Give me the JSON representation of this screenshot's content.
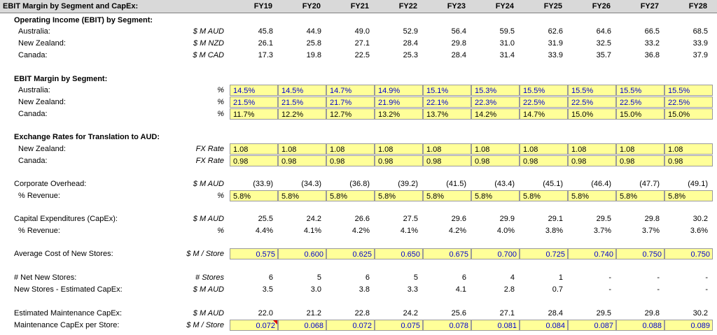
{
  "title": "EBIT Margin by Segment and CapEx:",
  "years": [
    "FY19",
    "FY20",
    "FY21",
    "FY22",
    "FY23",
    "FY24",
    "FY25",
    "FY26",
    "FY27",
    "FY28"
  ],
  "sections": [
    {
      "header": "Operating Income (EBIT) by Segment:",
      "rows": [
        {
          "label": "Australia:",
          "unit": "$ M AUD",
          "style": "plain",
          "values": [
            "45.8",
            "44.9",
            "49.0",
            "52.9",
            "56.4",
            "59.5",
            "62.6",
            "64.6",
            "66.5",
            "68.5"
          ]
        },
        {
          "label": "New Zealand:",
          "unit": "$ M NZD",
          "style": "plain",
          "values": [
            "26.1",
            "25.8",
            "27.1",
            "28.4",
            "29.8",
            "31.0",
            "31.9",
            "32.5",
            "33.2",
            "33.9"
          ]
        },
        {
          "label": "Canada:",
          "unit": "$ M CAD",
          "style": "plain",
          "values": [
            "17.3",
            "19.8",
            "22.5",
            "25.3",
            "28.4",
            "31.4",
            "33.9",
            "35.7",
            "36.8",
            "37.9"
          ]
        }
      ]
    },
    {
      "header": "EBIT Margin by Segment:",
      "rows": [
        {
          "label": "Australia:",
          "unit": "%",
          "style": "input-blue",
          "values": [
            "14.5%",
            "14.5%",
            "14.7%",
            "14.9%",
            "15.1%",
            "15.3%",
            "15.5%",
            "15.5%",
            "15.5%",
            "15.5%"
          ]
        },
        {
          "label": "New Zealand:",
          "unit": "%",
          "style": "input-blue",
          "values": [
            "21.5%",
            "21.5%",
            "21.7%",
            "21.9%",
            "22.1%",
            "22.3%",
            "22.5%",
            "22.5%",
            "22.5%",
            "22.5%"
          ]
        },
        {
          "label": "Canada:",
          "unit": "%",
          "style": "input",
          "values": [
            "11.7%",
            "12.2%",
            "12.7%",
            "13.2%",
            "13.7%",
            "14.2%",
            "14.7%",
            "15.0%",
            "15.0%",
            "15.0%"
          ]
        }
      ]
    },
    {
      "header": "Exchange Rates for Translation to AUD:",
      "rows": [
        {
          "label": "New Zealand:",
          "unit": "FX Rate",
          "style": "input",
          "values": [
            "1.08",
            "1.08",
            "1.08",
            "1.08",
            "1.08",
            "1.08",
            "1.08",
            "1.08",
            "1.08",
            "1.08"
          ]
        },
        {
          "label": "Canada:",
          "unit": "FX Rate",
          "style": "input",
          "values": [
            "0.98",
            "0.98",
            "0.98",
            "0.98",
            "0.98",
            "0.98",
            "0.98",
            "0.98",
            "0.98",
            "0.98"
          ]
        }
      ]
    },
    {
      "header": "",
      "rows": [
        {
          "label": "Corporate Overhead:",
          "unit": "$ M AUD",
          "style": "plain",
          "values": [
            "(33.9)",
            "(34.3)",
            "(36.8)",
            "(39.2)",
            "(41.5)",
            "(43.4)",
            "(45.1)",
            "(46.4)",
            "(47.7)",
            "(49.1)"
          ]
        },
        {
          "label": "% Revenue:",
          "unit": "%",
          "style": "input",
          "values": [
            "5.8%",
            "5.8%",
            "5.8%",
            "5.8%",
            "5.8%",
            "5.8%",
            "5.8%",
            "5.8%",
            "5.8%",
            "5.8%"
          ]
        }
      ]
    },
    {
      "header": "",
      "rows": [
        {
          "label": "Capital Expenditures (CapEx):",
          "unit": "$ M AUD",
          "style": "plain",
          "values": [
            "25.5",
            "24.2",
            "26.6",
            "27.5",
            "29.6",
            "29.9",
            "29.1",
            "29.5",
            "29.8",
            "30.2"
          ]
        },
        {
          "label": "% Revenue:",
          "unit": "%",
          "style": "plain",
          "values": [
            "4.4%",
            "4.1%",
            "4.2%",
            "4.1%",
            "4.2%",
            "4.0%",
            "3.8%",
            "3.7%",
            "3.7%",
            "3.6%"
          ]
        }
      ]
    },
    {
      "header": "",
      "rows": [
        {
          "label": "Average Cost of New Stores:",
          "unit": "$ M / Store",
          "style": "input-blue-right",
          "values": [
            "0.575",
            "0.600",
            "0.625",
            "0.650",
            "0.675",
            "0.700",
            "0.725",
            "0.740",
            "0.750",
            "0.750"
          ]
        }
      ]
    },
    {
      "header": "",
      "rows": [
        {
          "label": "# Net New Stores:",
          "unit": "# Stores",
          "style": "plain",
          "values": [
            "6",
            "5",
            "6",
            "5",
            "6",
            "4",
            "1",
            "-",
            "-",
            "-"
          ]
        },
        {
          "label": "New Stores - Estimated CapEx:",
          "unit": "$ M AUD",
          "style": "plain",
          "values": [
            "3.5",
            "3.0",
            "3.8",
            "3.3",
            "4.1",
            "2.8",
            "0.7",
            "-",
            "-",
            "-"
          ]
        }
      ]
    },
    {
      "header": "",
      "rows": [
        {
          "label": "Estimated Maintenance CapEx:",
          "unit": "$ M AUD",
          "style": "plain",
          "values": [
            "22.0",
            "21.2",
            "22.8",
            "24.2",
            "25.6",
            "27.1",
            "28.4",
            "29.5",
            "29.8",
            "30.2"
          ]
        },
        {
          "label": "Maintenance CapEx per Store:",
          "unit": "$ M / Store",
          "style": "input-blue-right",
          "values": [
            "0.072",
            "0.068",
            "0.072",
            "0.075",
            "0.078",
            "0.081",
            "0.084",
            "0.087",
            "0.088",
            "0.089"
          ]
        }
      ]
    }
  ],
  "colors": {
    "input_fill": "#ffff99",
    "input_text": "#0000cc",
    "header_fill": "#d9d9d9",
    "comment_marker": "#e00000"
  }
}
